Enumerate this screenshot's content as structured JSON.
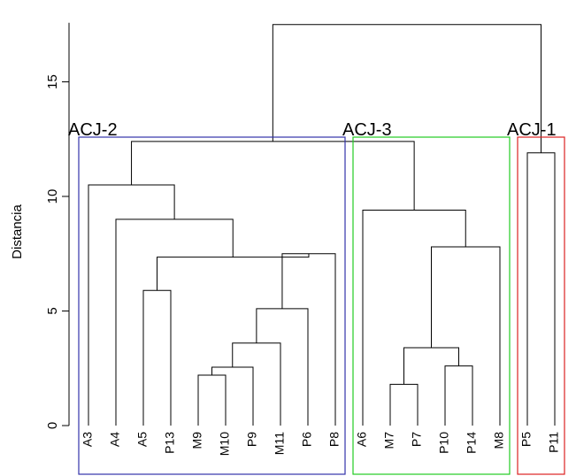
{
  "chart_data": {
    "type": "dendrogram",
    "ylabel": "Distancia",
    "ylim": [
      0,
      17.5
    ],
    "yticks": [
      0,
      5,
      10,
      15
    ],
    "leaves": [
      "A3",
      "A4",
      "A5",
      "P13",
      "M9",
      "M10",
      "P9",
      "M11",
      "P6",
      "P8",
      "A6",
      "M7",
      "P7",
      "P10",
      "P14",
      "M8",
      "P5",
      "P11"
    ],
    "merges": [
      {
        "left": "M9",
        "right": "M10",
        "height": 2.2,
        "id": "m1"
      },
      {
        "left": "m1",
        "right": "P9",
        "height": 2.55,
        "id": "m2"
      },
      {
        "left": "m2",
        "right": "M11",
        "height": 3.6,
        "id": "m3"
      },
      {
        "left": "m3",
        "right": "P6",
        "height": 5.1,
        "id": "m4"
      },
      {
        "left": "A5",
        "right": "P13",
        "height": 5.9,
        "id": "m5"
      },
      {
        "left": "m4",
        "right": "P8",
        "height": 7.5,
        "id": "m6"
      },
      {
        "left": "m5",
        "right": "m6",
        "height": 7.35,
        "id": "m7"
      },
      {
        "left": "A4",
        "right": "m7",
        "height": 9.0,
        "id": "m8"
      },
      {
        "left": "A3",
        "right": "m8",
        "height": 10.5,
        "id": "m9"
      },
      {
        "left": "M7",
        "right": "P7",
        "height": 1.8,
        "id": "m10"
      },
      {
        "left": "P10",
        "right": "P14",
        "height": 2.6,
        "id": "m11"
      },
      {
        "left": "m10",
        "right": "m11",
        "height": 3.4,
        "id": "m12"
      },
      {
        "left": "m12",
        "right": "M8",
        "height": 7.8,
        "id": "m13"
      },
      {
        "left": "A6",
        "right": "m13",
        "height": 9.4,
        "id": "m14"
      },
      {
        "left": "m9",
        "right": "m14",
        "height": 12.4,
        "id": "m15"
      },
      {
        "left": "P5",
        "right": "P11",
        "height": 11.9,
        "id": "m16"
      },
      {
        "left": "m15",
        "right": "m16",
        "height": 17.5,
        "id": "m17"
      }
    ],
    "clusters": [
      {
        "label": "ACJ-2",
        "color": "#3333aa",
        "leaves": [
          "A3",
          "A4",
          "A5",
          "P13",
          "M9",
          "M10",
          "P9",
          "M11",
          "P6",
          "P8"
        ]
      },
      {
        "label": "ACJ-3",
        "color": "#22cc22",
        "leaves": [
          "A6",
          "M7",
          "P7",
          "P10",
          "P14",
          "M8"
        ]
      },
      {
        "label": "ACJ-1",
        "color": "#dd2222",
        "leaves": [
          "P5",
          "P11"
        ]
      }
    ]
  }
}
